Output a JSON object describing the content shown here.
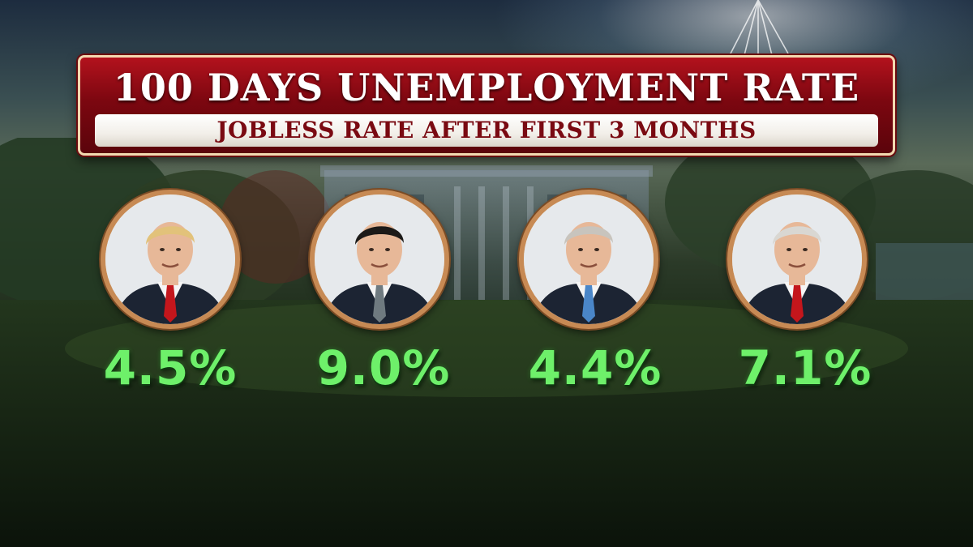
{
  "banner": {
    "title": "100 DAYS UNEMPLOYMENT RATE",
    "subtitle": "JOBLESS RATE AFTER FIRST 3 MONTHS"
  },
  "presidents": [
    {
      "rate": "4.5%",
      "hair": "#e2c27a",
      "tie": "#c4161c"
    },
    {
      "rate": "9.0%",
      "hair": "#1c1a18",
      "tie": "#6f7a80"
    },
    {
      "rate": "4.4%",
      "hair": "#c8c4bd",
      "tie": "#4a86c8"
    },
    {
      "rate": "7.1%",
      "hair": "#d9d7d2",
      "tie": "#c4161c"
    }
  ],
  "colors": {
    "banner_red": "#7c0710",
    "rate_green": "#6ef06a",
    "ring_gold": "#c78a54"
  }
}
